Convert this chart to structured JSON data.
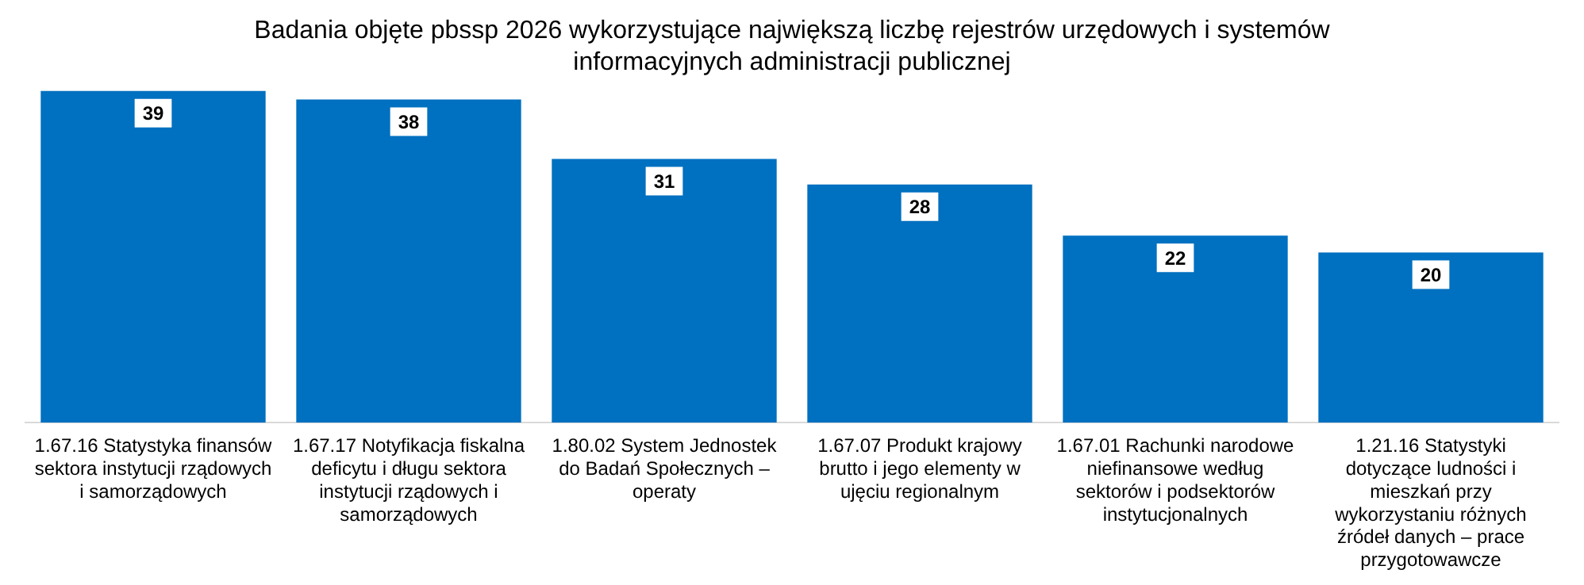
{
  "chart_data": {
    "type": "bar",
    "title": "Badania objęte pbssp 2026 wykorzystujące największą liczbę rejestrów urzędowych i systemów informacyjnych administracji publicznej",
    "categories": [
      "1.67.16 Statystyka finansów sektora instytucji rządowych i samorządowych",
      "1.67.17 Notyfikacja fiskalna deficytu i długu sektora instytucji rządowych i samorządowych",
      "1.80.02 System Jednostek do Badań Społecznych – operaty",
      "1.67.07 Produkt krajowy brutto i jego elementy w ujęciu regionalnym",
      "1.67.01 Rachunki narodowe niefinansowe według sektorów i podsektorów instytucjonalnych",
      "1.21.16 Statystyki dotyczące ludności i mieszkań przy wykorzystaniu różnych źródeł danych – prace przygotowawcze"
    ],
    "values": [
      39,
      38,
      31,
      28,
      22,
      20
    ],
    "color": "#0070c0",
    "data_labels": true
  }
}
